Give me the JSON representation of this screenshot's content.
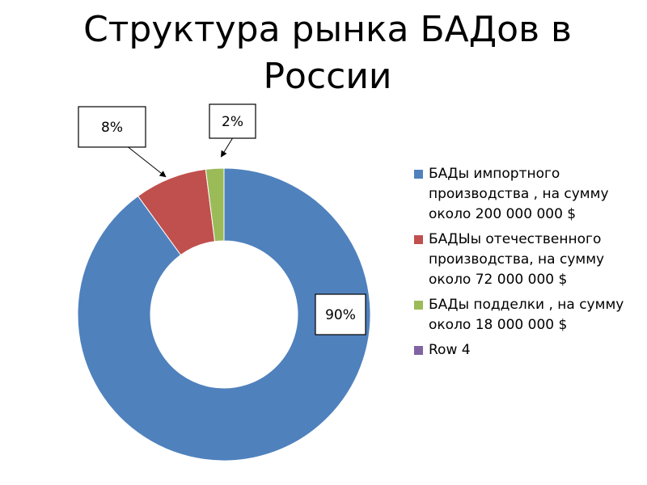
{
  "title": "Структура рынка БАДов в России",
  "chart_data": {
    "type": "pie",
    "variant": "donut",
    "title": "Структура рынка БАДов в России",
    "legend_position": "right",
    "series": [
      {
        "name": "БАДы импортного производства , на сумму около 200 000 000 $",
        "value": 90,
        "label": "90%",
        "color": "#4F81BD"
      },
      {
        "name": "БАДЫы отечественного производства, на сумму около 72 000 000 $",
        "value": 8,
        "label": "8%",
        "color": "#C0504D"
      },
      {
        "name": "БАДы подделки , на сумму около 18 000 000 $",
        "value": 2,
        "label": "2%",
        "color": "#9BBB59"
      },
      {
        "name": "Row 4",
        "value": 0,
        "label": "",
        "color": "#8064A2"
      }
    ]
  }
}
